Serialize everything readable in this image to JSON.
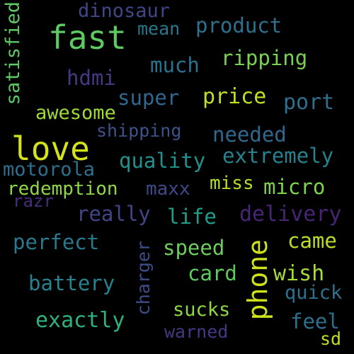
{
  "words": [
    {
      "text": "fast",
      "color": "#5ec962"
    },
    {
      "text": "love",
      "color": "#d2e21b"
    },
    {
      "text": "phone",
      "color": "#cde11d"
    },
    {
      "text": "dinosaur",
      "color": "#3f4788"
    },
    {
      "text": "mean",
      "color": "#2a788e"
    },
    {
      "text": "product",
      "color": "#2c728e"
    },
    {
      "text": "satisfied",
      "color": "#5ec962"
    },
    {
      "text": "ripping",
      "color": "#7ad151"
    },
    {
      "text": "much",
      "color": "#2c718e"
    },
    {
      "text": "hdmi",
      "color": "#443983"
    },
    {
      "text": "super",
      "color": "#31668e"
    },
    {
      "text": "price",
      "color": "#c2df23"
    },
    {
      "text": "port",
      "color": "#2e6e8e"
    },
    {
      "text": "awesome",
      "color": "#a0da39"
    },
    {
      "text": "shipping",
      "color": "#3b528b"
    },
    {
      "text": "needed",
      "color": "#31688e"
    },
    {
      "text": "quality",
      "color": "#21918c"
    },
    {
      "text": "extremely",
      "color": "#26828e"
    },
    {
      "text": "motorola",
      "color": "#2d708e"
    },
    {
      "text": "redemption",
      "color": "#8fd744"
    },
    {
      "text": "maxx",
      "color": "#3e4a89"
    },
    {
      "text": "miss",
      "color": "#b5de2b"
    },
    {
      "text": "micro",
      "color": "#7fd34e"
    },
    {
      "text": "razr",
      "color": "#472d7b"
    },
    {
      "text": "really",
      "color": "#414487"
    },
    {
      "text": "life",
      "color": "#1f9e89"
    },
    {
      "text": "delivery",
      "color": "#482475"
    },
    {
      "text": "perfect",
      "color": "#2a788e"
    },
    {
      "text": "charger",
      "color": "#3e4c8a"
    },
    {
      "text": "speed",
      "color": "#6ccd5a"
    },
    {
      "text": "came",
      "color": "#b8de29"
    },
    {
      "text": "battery",
      "color": "#26828e"
    },
    {
      "text": "card",
      "color": "#5ec962"
    },
    {
      "text": "wish",
      "color": "#a5db36"
    },
    {
      "text": "quick",
      "color": "#2c728e"
    },
    {
      "text": "exactly",
      "color": "#2db27d"
    },
    {
      "text": "sucks",
      "color": "#8fd744"
    },
    {
      "text": "warned",
      "color": "#453882"
    },
    {
      "text": "feel",
      "color": "#2d708e"
    },
    {
      "text": "sd",
      "color": "#bddf26"
    }
  ]
}
